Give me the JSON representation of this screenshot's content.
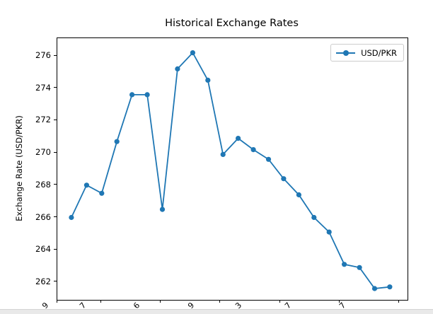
{
  "window": {
    "kind": "matplotlib-figure"
  },
  "chart_data": {
    "type": "line",
    "title": "Historical Exchange Rates",
    "ylabel": "Exchange Rate (USD/PKR)",
    "xlabel": "",
    "legend": {
      "label": "USD/PKR",
      "position": "upper right"
    },
    "grid": false,
    "series": [
      {
        "name": "USD/PKR",
        "values": [
          266.0,
          268.0,
          267.5,
          270.7,
          273.6,
          273.6,
          266.5,
          275.2,
          276.2,
          274.5,
          269.9,
          270.9,
          270.2,
          269.6,
          268.4,
          267.4,
          266.0,
          265.1,
          263.1,
          262.9,
          261.6,
          261.7
        ]
      }
    ],
    "ylim": [
      260.9,
      277.1
    ],
    "yticks": [
      262,
      264,
      266,
      268,
      270,
      272,
      274,
      276
    ],
    "xlim": [
      -0.93,
      22.17
    ],
    "xticks": [
      -0.93,
      1.99,
      5.91,
      9.84,
      13.77,
      17.7,
      21.65
    ],
    "xtick_labels_visible_fragments": [
      "9",
      "7",
      "6",
      "9",
      "3",
      "7",
      "7"
    ],
    "xtick_fragment_fracs": [
      -0.046,
      0.061,
      0.214,
      0.37,
      0.505,
      0.646,
      0.802
    ],
    "colors": {
      "line": "#1f77b4",
      "marker": "#1f77b4",
      "spine": "#000000",
      "legend_border": "#cccccc",
      "background": "#ffffff",
      "bottom_strip": "#e9e9e9"
    }
  }
}
